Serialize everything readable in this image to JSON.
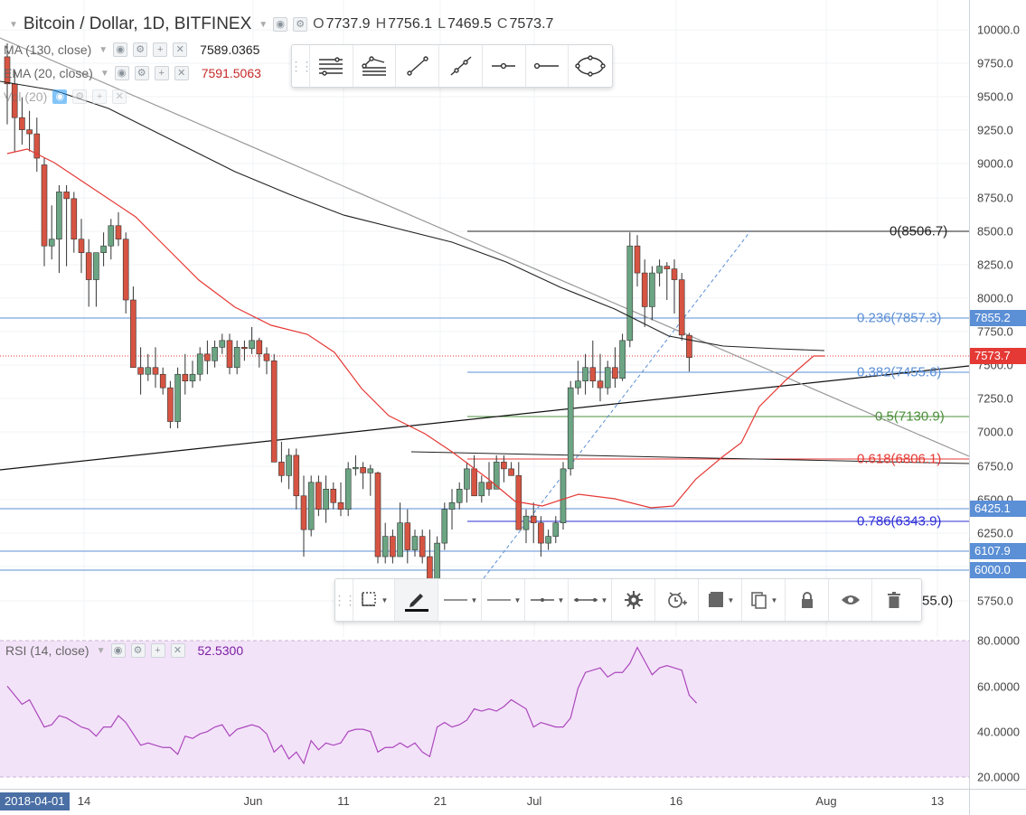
{
  "header": {
    "symbol_title": "Bitcoin / Dollar, 1D, BITFINEX",
    "ohlc": {
      "o_label": "O",
      "o": "7737.9",
      "h_label": "H",
      "h": "7756.1",
      "l_label": "L",
      "l": "7469.5",
      "c_label": "C",
      "c": "7573.7"
    }
  },
  "indicators": {
    "ma": {
      "name": "MA (130, close)",
      "value": "7589.0365",
      "color": "#222222"
    },
    "ema": {
      "name": "EMA (20, close)",
      "value": "7591.5063",
      "color": "#e53935"
    },
    "vol": {
      "name": "Vol (20)"
    },
    "rsi": {
      "name": "RSI (14, close)",
      "value": "52.5300",
      "color": "#ab47bc"
    }
  },
  "price_axis": {
    "ticks": [
      "10000.0",
      "9750.0",
      "9500.0",
      "9250.0",
      "9000.0",
      "8750.0",
      "8500.0",
      "8250.0",
      "8000.0",
      "7750.0",
      "7500.0",
      "7250.0",
      "7000.0",
      "6750.0",
      "6500.0",
      "6250.0",
      "6000.0",
      "5750.0"
    ],
    "labels": [
      {
        "text": "7855.2",
        "color": "#5b8fd6"
      },
      {
        "text": "7573.7",
        "color": "#e53935"
      },
      {
        "text": "6425.1",
        "color": "#5b8fd6"
      },
      {
        "text": "6107.9",
        "color": "#5b8fd6"
      },
      {
        "text": "6000.0",
        "color": "#5b8fd6"
      }
    ]
  },
  "rsi_axis": {
    "ticks": [
      "80.0000",
      "60.0000",
      "40.0000",
      "20.0000"
    ]
  },
  "time_axis": {
    "start_label": "2018-04-01",
    "ticks": [
      "14",
      "Jun",
      "11",
      "21",
      "Jul",
      "16",
      "Aug",
      "13"
    ]
  },
  "fibonacci": {
    "levels": [
      {
        "text": "0(8506.7)",
        "color": "#222222"
      },
      {
        "text": "0.236(7857.3)",
        "color": "#5b8fd6"
      },
      {
        "text": "0.382(7455.6)",
        "color": "#5b8fd6"
      },
      {
        "text": "0.5(7130.9)",
        "color": "#4d8f3b"
      },
      {
        "text": "0.618(6806.1)",
        "color": "#e53935"
      },
      {
        "text": "0.786(6343.9)",
        "color": "#2c2cd6"
      },
      {
        "text": "55.0)",
        "color": "#222222"
      }
    ]
  },
  "colors": {
    "up_candle": "#6ba583",
    "down_candle": "#d75442",
    "rsi_fill": "#f3e3f9",
    "horizontal_line": "#5b8fd6",
    "last_price": "#e53935"
  },
  "icons": {
    "legend_buttons": [
      "eye-icon",
      "gear-icon",
      "plus-icon",
      "close-icon"
    ],
    "drawing_toolbar": [
      "horizontal-lines-icon",
      "parallel-channel-icon",
      "trend-line-icon",
      "ray-icon",
      "horizontal-ray-icon",
      "extended-line-icon",
      "ellipse-icon"
    ],
    "properties_toolbar": [
      "select-area-icon",
      "pencil-icon",
      "line-style-icon",
      "line-style-icon-2",
      "line-end-icon",
      "line-both-ends-icon",
      "gear-icon",
      "alert-clock-icon",
      "template-icon",
      "clone-icon",
      "lock-icon",
      "eye-icon",
      "trash-icon"
    ]
  }
}
